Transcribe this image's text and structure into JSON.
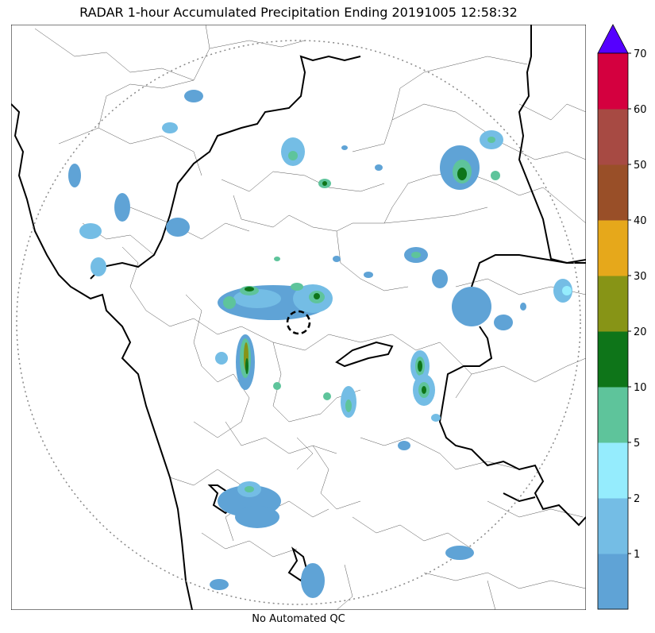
{
  "title": "RADAR 1-hour Accumulated Precipitation Ending 20191005 12:58:32",
  "footer_note": "No Automated QC",
  "colorbar": {
    "bins": [
      {
        "color": "#5fa3d6",
        "label": "1"
      },
      {
        "color": "#74bde5",
        "label": "2"
      },
      {
        "color": "#95ecfd",
        "label": "5"
      },
      {
        "color": "#5ec49b",
        "label": "10"
      },
      {
        "color": "#0e7519",
        "label": "20"
      },
      {
        "color": "#879416",
        "label": "30"
      },
      {
        "color": "#e6a81b",
        "label": "40"
      },
      {
        "color": "#994f28",
        "label": "50"
      },
      {
        "color": "#a74a43",
        "label": "60"
      },
      {
        "color": "#d4003f",
        "label": "70"
      }
    ],
    "extend_max_color": "#5500ff"
  },
  "map": {
    "range_ring": "dotted",
    "radar_site_marker": "dashed-circle",
    "layers": [
      "coastline",
      "state-borders",
      "district-borders",
      "precipitation"
    ]
  }
}
